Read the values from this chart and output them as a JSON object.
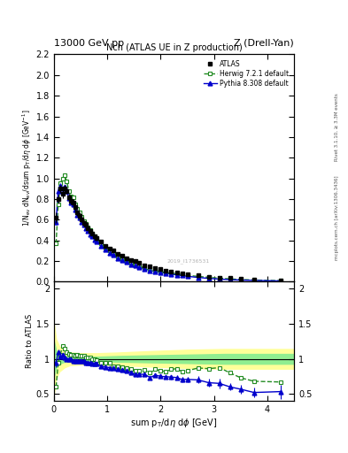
{
  "title_top": "13000 GeV pp",
  "title_right": "Z (Drell-Yan)",
  "plot_title": "Nch (ATLAS UE in Z production)",
  "xlabel": "sum p_{T}/d\\eta d\\phi [GeV]",
  "ylabel_main": "1/N_{ev} dN_{ev}/dsum p_{T}/d\\eta d\\phi  [GeV^{-1}]",
  "ylabel_ratio": "Ratio to ATLAS",
  "right_label_top": "Rivet 3.1.10, ≥ 3.3M events",
  "right_label_bot": "mcplots.cern.ch [arXiv:1306.3436]",
  "watermark": "2019_I1736531",
  "atlas_x": [
    0.04,
    0.08,
    0.12,
    0.16,
    0.2,
    0.24,
    0.28,
    0.32,
    0.36,
    0.4,
    0.44,
    0.48,
    0.52,
    0.56,
    0.6,
    0.64,
    0.68,
    0.72,
    0.76,
    0.8,
    0.88,
    0.96,
    1.04,
    1.12,
    1.2,
    1.28,
    1.36,
    1.44,
    1.52,
    1.6,
    1.7,
    1.8,
    1.9,
    2.0,
    2.1,
    2.2,
    2.3,
    2.4,
    2.5,
    2.7,
    2.9,
    3.1,
    3.3,
    3.5,
    3.75,
    4.25
  ],
  "atlas_y": [
    0.62,
    0.8,
    0.9,
    0.85,
    0.9,
    0.88,
    0.82,
    0.78,
    0.77,
    0.72,
    0.67,
    0.64,
    0.6,
    0.57,
    0.55,
    0.52,
    0.49,
    0.47,
    0.44,
    0.42,
    0.39,
    0.35,
    0.32,
    0.3,
    0.27,
    0.25,
    0.23,
    0.21,
    0.2,
    0.18,
    0.16,
    0.15,
    0.13,
    0.12,
    0.11,
    0.1,
    0.09,
    0.085,
    0.075,
    0.06,
    0.05,
    0.04,
    0.035,
    0.03,
    0.025,
    0.015
  ],
  "atlas_yerr": [
    0.05,
    0.04,
    0.04,
    0.04,
    0.04,
    0.03,
    0.03,
    0.03,
    0.03,
    0.03,
    0.03,
    0.03,
    0.025,
    0.025,
    0.025,
    0.02,
    0.02,
    0.02,
    0.02,
    0.02,
    0.018,
    0.016,
    0.015,
    0.014,
    0.013,
    0.012,
    0.011,
    0.01,
    0.01,
    0.009,
    0.009,
    0.008,
    0.008,
    0.007,
    0.007,
    0.006,
    0.006,
    0.005,
    0.005,
    0.005,
    0.004,
    0.004,
    0.003,
    0.003,
    0.003,
    0.002
  ],
  "herwig_x": [
    0.04,
    0.08,
    0.12,
    0.16,
    0.2,
    0.24,
    0.28,
    0.32,
    0.36,
    0.4,
    0.44,
    0.48,
    0.52,
    0.56,
    0.6,
    0.64,
    0.68,
    0.72,
    0.76,
    0.8,
    0.88,
    0.96,
    1.04,
    1.12,
    1.2,
    1.28,
    1.36,
    1.44,
    1.52,
    1.6,
    1.7,
    1.8,
    1.9,
    2.0,
    2.1,
    2.2,
    2.3,
    2.4,
    2.5,
    2.7,
    2.9,
    3.1,
    3.3,
    3.5,
    3.75,
    4.25
  ],
  "herwig_y": [
    0.37,
    0.75,
    0.95,
    1.0,
    1.03,
    0.97,
    0.88,
    0.83,
    0.82,
    0.75,
    0.71,
    0.67,
    0.63,
    0.59,
    0.56,
    0.53,
    0.5,
    0.47,
    0.44,
    0.41,
    0.37,
    0.33,
    0.3,
    0.27,
    0.24,
    0.22,
    0.2,
    0.18,
    0.165,
    0.15,
    0.135,
    0.12,
    0.11,
    0.1,
    0.09,
    0.085,
    0.077,
    0.07,
    0.062,
    0.052,
    0.043,
    0.035,
    0.028,
    0.022,
    0.017,
    0.01
  ],
  "pythia_x": [
    0.04,
    0.08,
    0.12,
    0.16,
    0.2,
    0.24,
    0.28,
    0.32,
    0.36,
    0.4,
    0.44,
    0.48,
    0.52,
    0.56,
    0.6,
    0.64,
    0.68,
    0.72,
    0.76,
    0.8,
    0.88,
    0.96,
    1.04,
    1.12,
    1.2,
    1.28,
    1.36,
    1.44,
    1.52,
    1.6,
    1.7,
    1.8,
    1.9,
    2.0,
    2.1,
    2.2,
    2.3,
    2.4,
    2.5,
    2.7,
    2.9,
    3.1,
    3.3,
    3.5,
    3.75,
    4.25
  ],
  "pythia_y": [
    0.58,
    0.88,
    0.93,
    0.9,
    0.92,
    0.88,
    0.81,
    0.77,
    0.75,
    0.7,
    0.65,
    0.62,
    0.58,
    0.55,
    0.52,
    0.49,
    0.46,
    0.44,
    0.41,
    0.39,
    0.35,
    0.31,
    0.28,
    0.26,
    0.23,
    0.21,
    0.19,
    0.17,
    0.155,
    0.14,
    0.125,
    0.11,
    0.1,
    0.09,
    0.082,
    0.074,
    0.066,
    0.06,
    0.053,
    0.042,
    0.033,
    0.026,
    0.021,
    0.017,
    0.013,
    0.008
  ],
  "pythia_yerr": [
    0.03,
    0.02,
    0.02,
    0.02,
    0.02,
    0.02,
    0.015,
    0.015,
    0.015,
    0.015,
    0.012,
    0.012,
    0.012,
    0.01,
    0.01,
    0.01,
    0.01,
    0.01,
    0.009,
    0.009,
    0.008,
    0.007,
    0.007,
    0.006,
    0.006,
    0.005,
    0.005,
    0.005,
    0.004,
    0.004,
    0.004,
    0.003,
    0.003,
    0.003,
    0.003,
    0.003,
    0.003,
    0.003,
    0.003,
    0.003,
    0.003,
    0.003,
    0.002,
    0.002,
    0.002,
    0.002
  ],
  "ratio_herwig_y": [
    0.6,
    0.94,
    1.06,
    1.18,
    1.15,
    1.1,
    1.07,
    1.06,
    1.06,
    1.04,
    1.06,
    1.05,
    1.05,
    1.04,
    1.02,
    1.02,
    1.02,
    1.0,
    1.0,
    0.98,
    0.95,
    0.94,
    0.94,
    0.9,
    0.89,
    0.88,
    0.87,
    0.86,
    0.83,
    0.83,
    0.84,
    0.8,
    0.85,
    0.83,
    0.82,
    0.85,
    0.86,
    0.82,
    0.83,
    0.87,
    0.86,
    0.875,
    0.8,
    0.73,
    0.68,
    0.67
  ],
  "ratio_pythia_y": [
    0.94,
    1.1,
    1.03,
    1.06,
    1.02,
    1.0,
    0.99,
    0.99,
    0.97,
    0.97,
    0.97,
    0.97,
    0.97,
    0.965,
    0.945,
    0.942,
    0.94,
    0.936,
    0.932,
    0.929,
    0.897,
    0.886,
    0.875,
    0.867,
    0.852,
    0.84,
    0.826,
    0.81,
    0.775,
    0.778,
    0.781,
    0.733,
    0.769,
    0.75,
    0.745,
    0.74,
    0.733,
    0.706,
    0.707,
    0.7,
    0.66,
    0.65,
    0.6,
    0.567,
    0.52,
    0.533
  ],
  "ratio_pythia_yerr": [
    0.06,
    0.03,
    0.025,
    0.025,
    0.025,
    0.025,
    0.022,
    0.022,
    0.022,
    0.022,
    0.02,
    0.02,
    0.02,
    0.019,
    0.019,
    0.019,
    0.019,
    0.02,
    0.02,
    0.02,
    0.02,
    0.022,
    0.024,
    0.022,
    0.022,
    0.022,
    0.022,
    0.023,
    0.023,
    0.024,
    0.026,
    0.022,
    0.026,
    0.026,
    0.028,
    0.03,
    0.033,
    0.035,
    0.038,
    0.05,
    0.06,
    0.07,
    0.05,
    0.06,
    0.07,
    0.1
  ],
  "band_x": [
    0.0,
    0.04,
    0.1,
    0.2,
    0.3,
    0.5,
    0.8,
    1.2,
    1.8,
    2.5,
    3.2,
    4.0,
    4.5
  ],
  "green_band_lo": [
    0.75,
    0.88,
    0.93,
    0.96,
    0.97,
    0.97,
    0.97,
    0.96,
    0.95,
    0.94,
    0.93,
    0.93,
    0.93
  ],
  "green_band_hi": [
    1.25,
    1.12,
    1.07,
    1.04,
    1.03,
    1.03,
    1.03,
    1.04,
    1.05,
    1.06,
    1.07,
    1.07,
    1.07
  ],
  "yellow_band_lo": [
    0.5,
    0.72,
    0.82,
    0.88,
    0.91,
    0.92,
    0.92,
    0.91,
    0.89,
    0.87,
    0.86,
    0.86,
    0.86
  ],
  "yellow_band_hi": [
    1.5,
    1.28,
    1.18,
    1.12,
    1.09,
    1.08,
    1.08,
    1.09,
    1.11,
    1.13,
    1.14,
    1.14,
    1.14
  ],
  "xlim": [
    0,
    4.5
  ],
  "ylim_main": [
    0,
    2.2
  ],
  "ylim_ratio": [
    0.4,
    2.1
  ],
  "yticks_main": [
    0,
    0.2,
    0.4,
    0.6,
    0.8,
    1.0,
    1.2,
    1.4,
    1.6,
    1.8,
    2.0,
    2.2
  ],
  "yticks_ratio": [
    0.5,
    1.0,
    1.5,
    2.0
  ],
  "xticks": [
    0,
    1,
    2,
    3,
    4
  ],
  "atlas_color": "#000000",
  "herwig_color": "#228B22",
  "pythia_color": "#0000cc",
  "green_band_color": "#90EE90",
  "yellow_band_color": "#FFFF99"
}
